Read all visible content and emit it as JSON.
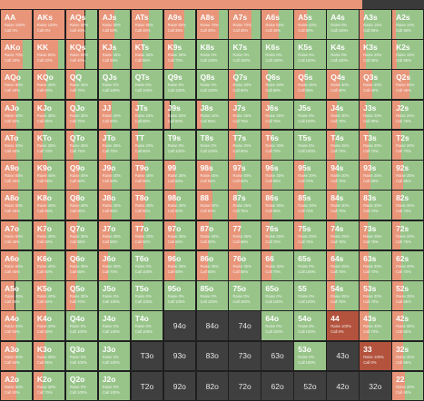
{
  "colors": {
    "raise": "#e8957a",
    "call": "#98c48a",
    "fold": "#3f3f3f",
    "dark_raise": "#b3533d",
    "grid_bg": "#1f1f1f"
  },
  "raise_word": "Raise",
  "call_word": "Call",
  "rows": [
    [
      {
        "hand": "AA",
        "mode": "raise",
        "raise_pct": 100,
        "call_pct": 0
      },
      {
        "hand": "AKs",
        "mode": "raise",
        "raise_pct": 100,
        "call_pct": 0
      },
      {
        "hand": "AQs",
        "mode": "mixed",
        "raise_pct": 60,
        "call_pct": 40
      },
      {
        "hand": "AJs",
        "mode": "mixed",
        "raise_pct": 50,
        "call_pct": 50
      },
      {
        "hand": "ATs",
        "mode": "mixed",
        "raise_pct": 55,
        "call_pct": 45
      },
      {
        "hand": "A9s",
        "mode": "mixed",
        "raise_pct": 65,
        "call_pct": 35
      },
      {
        "hand": "A8s",
        "mode": "mixed",
        "raise_pct": 70,
        "call_pct": 30
      },
      {
        "hand": "A7s",
        "mode": "mixed",
        "raise_pct": 70,
        "call_pct": 30
      },
      {
        "hand": "A6s",
        "mode": "mixed",
        "raise_pct": 55,
        "call_pct": 45
      },
      {
        "hand": "A5s",
        "mode": "mixed",
        "raise_pct": 40,
        "call_pct": 60
      },
      {
        "hand": "A4s",
        "mode": "call",
        "raise_pct": 0,
        "call_pct": 100
      },
      {
        "hand": "A3s",
        "mode": "mixed",
        "raise_pct": 15,
        "call_pct": 85
      },
      {
        "hand": "A2s",
        "mode": "mixed",
        "raise_pct": 10,
        "call_pct": 90
      }
    ],
    [
      {
        "hand": "AKo",
        "mode": "mixed",
        "raise_pct": 70,
        "call_pct": 30
      },
      {
        "hand": "KK",
        "mode": "mixed",
        "raise_pct": 80,
        "call_pct": 20
      },
      {
        "hand": "KQs",
        "mode": "mixed",
        "raise_pct": 60,
        "call_pct": 40
      },
      {
        "hand": "KJs",
        "mode": "mixed",
        "raise_pct": 45,
        "call_pct": 55
      },
      {
        "hand": "KTs",
        "mode": "mixed",
        "raise_pct": 35,
        "call_pct": 65
      },
      {
        "hand": "K9s",
        "mode": "mixed",
        "raise_pct": 30,
        "call_pct": 70
      },
      {
        "hand": "K8s",
        "mode": "call",
        "raise_pct": 0,
        "call_pct": 100
      },
      {
        "hand": "K7s",
        "mode": "call",
        "raise_pct": 0,
        "call_pct": 100
      },
      {
        "hand": "K6s",
        "mode": "call",
        "raise_pct": 0,
        "call_pct": 100
      },
      {
        "hand": "K5s",
        "mode": "call",
        "raise_pct": 0,
        "call_pct": 100
      },
      {
        "hand": "K4s",
        "mode": "call",
        "raise_pct": 0,
        "call_pct": 100
      },
      {
        "hand": "K3s",
        "mode": "mixed",
        "raise_pct": 20,
        "call_pct": 80
      },
      {
        "hand": "K2s",
        "mode": "mixed",
        "raise_pct": 15,
        "call_pct": 85
      }
    ],
    [
      {
        "hand": "AQo",
        "mode": "mixed",
        "raise_pct": 55,
        "call_pct": 45
      },
      {
        "hand": "KQo",
        "mode": "mixed",
        "raise_pct": 40,
        "call_pct": 60
      },
      {
        "hand": "QQ",
        "mode": "mixed",
        "raise_pct": 30,
        "call_pct": 70
      },
      {
        "hand": "QJs",
        "mode": "call",
        "raise_pct": 0,
        "call_pct": 100
      },
      {
        "hand": "QTs",
        "mode": "call",
        "raise_pct": 0,
        "call_pct": 100
      },
      {
        "hand": "Q9s",
        "mode": "call",
        "raise_pct": 0,
        "call_pct": 100
      },
      {
        "hand": "Q8s",
        "mode": "call",
        "raise_pct": 0,
        "call_pct": 100
      },
      {
        "hand": "Q7s",
        "mode": "mixed",
        "raise_pct": 20,
        "call_pct": 80
      },
      {
        "hand": "Q6s",
        "mode": "mixed",
        "raise_pct": 20,
        "call_pct": 80
      },
      {
        "hand": "Q5s",
        "mode": "mixed",
        "raise_pct": 35,
        "call_pct": 65
      },
      {
        "hand": "Q4s",
        "mode": "mixed",
        "raise_pct": 40,
        "call_pct": 60
      },
      {
        "hand": "Q3s",
        "mode": "mixed",
        "raise_pct": 40,
        "call_pct": 60
      },
      {
        "hand": "Q2s",
        "mode": "mixed",
        "raise_pct": 55,
        "call_pct": 45
      }
    ],
    [
      {
        "hand": "AJo",
        "mode": "mixed",
        "raise_pct": 50,
        "call_pct": 50
      },
      {
        "hand": "KJo",
        "mode": "mixed",
        "raise_pct": 35,
        "call_pct": 65
      },
      {
        "hand": "QJo",
        "mode": "mixed",
        "raise_pct": 30,
        "call_pct": 70
      },
      {
        "hand": "JJ",
        "mode": "mixed",
        "raise_pct": 40,
        "call_pct": 60
      },
      {
        "hand": "JTs",
        "mode": "mixed",
        "raise_pct": 20,
        "call_pct": 80
      },
      {
        "hand": "J9s",
        "mode": "mixed",
        "raise_pct": 20,
        "call_pct": 80
      },
      {
        "hand": "J8s",
        "mode": "mixed",
        "raise_pct": 15,
        "call_pct": 85
      },
      {
        "hand": "J7s",
        "mode": "mixed",
        "raise_pct": 25,
        "call_pct": 75
      },
      {
        "hand": "J6s",
        "mode": "mixed",
        "raise_pct": 25,
        "call_pct": 75
      },
      {
        "hand": "J5s",
        "mode": "call",
        "raise_pct": 0,
        "call_pct": 100
      },
      {
        "hand": "J4s",
        "mode": "mixed",
        "raise_pct": 30,
        "call_pct": 70
      },
      {
        "hand": "J3s",
        "mode": "mixed",
        "raise_pct": 20,
        "call_pct": 80
      },
      {
        "hand": "J2s",
        "mode": "mixed",
        "raise_pct": 25,
        "call_pct": 75
      }
    ],
    [
      {
        "hand": "ATo",
        "mode": "mixed",
        "raise_pct": 50,
        "call_pct": 50
      },
      {
        "hand": "KTo",
        "mode": "mixed",
        "raise_pct": 30,
        "call_pct": 70
      },
      {
        "hand": "QTo",
        "mode": "mixed",
        "raise_pct": 25,
        "call_pct": 75
      },
      {
        "hand": "JTo",
        "mode": "mixed",
        "raise_pct": 25,
        "call_pct": 75
      },
      {
        "hand": "TT",
        "mode": "mixed",
        "raise_pct": 20,
        "call_pct": 80
      },
      {
        "hand": "T9s",
        "mode": "call",
        "raise_pct": 0,
        "call_pct": 100
      },
      {
        "hand": "T8s",
        "mode": "call",
        "raise_pct": 0,
        "call_pct": 100
      },
      {
        "hand": "T7s",
        "mode": "mixed",
        "raise_pct": 20,
        "call_pct": 80
      },
      {
        "hand": "T6s",
        "mode": "mixed",
        "raise_pct": 30,
        "call_pct": 70
      },
      {
        "hand": "T5s",
        "mode": "call",
        "raise_pct": 0,
        "call_pct": 100
      },
      {
        "hand": "T4s",
        "mode": "mixed",
        "raise_pct": 25,
        "call_pct": 75
      },
      {
        "hand": "T3s",
        "mode": "mixed",
        "raise_pct": 30,
        "call_pct": 70
      },
      {
        "hand": "T2s",
        "mode": "mixed",
        "raise_pct": 30,
        "call_pct": 70
      }
    ],
    [
      {
        "hand": "A9o",
        "mode": "mixed",
        "raise_pct": 55,
        "call_pct": 45
      },
      {
        "hand": "K9o",
        "mode": "mixed",
        "raise_pct": 45,
        "call_pct": 55
      },
      {
        "hand": "Q9o",
        "mode": "mixed",
        "raise_pct": 40,
        "call_pct": 60
      },
      {
        "hand": "J9o",
        "mode": "mixed",
        "raise_pct": 40,
        "call_pct": 60
      },
      {
        "hand": "T9o",
        "mode": "mixed",
        "raise_pct": 45,
        "call_pct": 55
      },
      {
        "hand": "99",
        "mode": "mixed",
        "raise_pct": 35,
        "call_pct": 65
      },
      {
        "hand": "98s",
        "mode": "mixed",
        "raise_pct": 45,
        "call_pct": 55
      },
      {
        "hand": "97s",
        "mode": "mixed",
        "raise_pct": 40,
        "call_pct": 60
      },
      {
        "hand": "96s",
        "mode": "mixed",
        "raise_pct": 35,
        "call_pct": 65
      },
      {
        "hand": "95s",
        "mode": "mixed",
        "raise_pct": 30,
        "call_pct": 70
      },
      {
        "hand": "94s",
        "mode": "mixed",
        "raise_pct": 30,
        "call_pct": 70
      },
      {
        "hand": "93s",
        "mode": "mixed",
        "raise_pct": 35,
        "call_pct": 65
      },
      {
        "hand": "92s",
        "mode": "mixed",
        "raise_pct": 35,
        "call_pct": 65
      }
    ],
    [
      {
        "hand": "A8o",
        "mode": "mixed",
        "raise_pct": 55,
        "call_pct": 45
      },
      {
        "hand": "K8o",
        "mode": "mixed",
        "raise_pct": 45,
        "call_pct": 55
      },
      {
        "hand": "Q8o",
        "mode": "mixed",
        "raise_pct": 40,
        "call_pct": 60
      },
      {
        "hand": "J8o",
        "mode": "mixed",
        "raise_pct": 40,
        "call_pct": 60
      },
      {
        "hand": "T8o",
        "mode": "mixed",
        "raise_pct": 45,
        "call_pct": 55
      },
      {
        "hand": "98o",
        "mode": "mixed",
        "raise_pct": 40,
        "call_pct": 60
      },
      {
        "hand": "88",
        "mode": "mixed",
        "raise_pct": 50,
        "call_pct": 50
      },
      {
        "hand": "87s",
        "mode": "mixed",
        "raise_pct": 25,
        "call_pct": 75
      },
      {
        "hand": "86s",
        "mode": "mixed",
        "raise_pct": 35,
        "call_pct": 65
      },
      {
        "hand": "85s",
        "mode": "mixed",
        "raise_pct": 30,
        "call_pct": 70
      },
      {
        "hand": "84s",
        "mode": "mixed",
        "raise_pct": 30,
        "call_pct": 70
      },
      {
        "hand": "83s",
        "mode": "mixed",
        "raise_pct": 30,
        "call_pct": 70
      },
      {
        "hand": "82s",
        "mode": "mixed",
        "raise_pct": 30,
        "call_pct": 70
      }
    ],
    [
      {
        "hand": "A7o",
        "mode": "mixed",
        "raise_pct": 55,
        "call_pct": 45
      },
      {
        "hand": "K7o",
        "mode": "mixed",
        "raise_pct": 40,
        "call_pct": 60
      },
      {
        "hand": "Q7o",
        "mode": "mixed",
        "raise_pct": 35,
        "call_pct": 65
      },
      {
        "hand": "J7o",
        "mode": "mixed",
        "raise_pct": 35,
        "call_pct": 65
      },
      {
        "hand": "T7o",
        "mode": "mixed",
        "raise_pct": 40,
        "call_pct": 60
      },
      {
        "hand": "97o",
        "mode": "mixed",
        "raise_pct": 35,
        "call_pct": 65
      },
      {
        "hand": "87o",
        "mode": "mixed",
        "raise_pct": 40,
        "call_pct": 60
      },
      {
        "hand": "77",
        "mode": "mixed",
        "raise_pct": 35,
        "call_pct": 65
      },
      {
        "hand": "76s",
        "mode": "mixed",
        "raise_pct": 25,
        "call_pct": 75
      },
      {
        "hand": "75s",
        "mode": "mixed",
        "raise_pct": 25,
        "call_pct": 75
      },
      {
        "hand": "74s",
        "mode": "mixed",
        "raise_pct": 25,
        "call_pct": 75
      },
      {
        "hand": "73s",
        "mode": "mixed",
        "raise_pct": 25,
        "call_pct": 75
      },
      {
        "hand": "72s",
        "mode": "mixed",
        "raise_pct": 25,
        "call_pct": 75
      }
    ],
    [
      {
        "hand": "A6o",
        "mode": "mixed",
        "raise_pct": 55,
        "call_pct": 45
      },
      {
        "hand": "K6o",
        "mode": "mixed",
        "raise_pct": 40,
        "call_pct": 60
      },
      {
        "hand": "Q6o",
        "mode": "mixed",
        "raise_pct": 35,
        "call_pct": 65
      },
      {
        "hand": "J6o",
        "mode": "mixed",
        "raise_pct": 30,
        "call_pct": 70
      },
      {
        "hand": "T6o",
        "mode": "call",
        "raise_pct": 0,
        "call_pct": 100
      },
      {
        "hand": "96o",
        "mode": "mixed",
        "raise_pct": 35,
        "call_pct": 65
      },
      {
        "hand": "86o",
        "mode": "mixed",
        "raise_pct": 35,
        "call_pct": 65
      },
      {
        "hand": "76o",
        "mode": "mixed",
        "raise_pct": 35,
        "call_pct": 65
      },
      {
        "hand": "66",
        "mode": "mixed",
        "raise_pct": 30,
        "call_pct": 70
      },
      {
        "hand": "65s",
        "mode": "call",
        "raise_pct": 0,
        "call_pct": 100
      },
      {
        "hand": "64s",
        "mode": "mixed",
        "raise_pct": 25,
        "call_pct": 75
      },
      {
        "hand": "63s",
        "mode": "mixed",
        "raise_pct": 30,
        "call_pct": 70
      },
      {
        "hand": "62s",
        "mode": "mixed",
        "raise_pct": 30,
        "call_pct": 70
      }
    ],
    [
      {
        "hand": "A5o",
        "mode": "mixed",
        "raise_pct": 45,
        "call_pct": 55
      },
      {
        "hand": "K5o",
        "mode": "mixed",
        "raise_pct": 40,
        "call_pct": 60
      },
      {
        "hand": "Q5o",
        "mode": "mixed",
        "raise_pct": 30,
        "call_pct": 70
      },
      {
        "hand": "J5o",
        "mode": "call",
        "raise_pct": 0,
        "call_pct": 100
      },
      {
        "hand": "T5o",
        "mode": "call",
        "raise_pct": 0,
        "call_pct": 100
      },
      {
        "hand": "95o",
        "mode": "call",
        "raise_pct": 0,
        "call_pct": 100
      },
      {
        "hand": "85o",
        "mode": "call",
        "raise_pct": 0,
        "call_pct": 100
      },
      {
        "hand": "75o",
        "mode": "call",
        "raise_pct": 0,
        "call_pct": 100
      },
      {
        "hand": "65o",
        "mode": "call",
        "raise_pct": 0,
        "call_pct": 100
      },
      {
        "hand": "55",
        "mode": "call",
        "raise_pct": 0,
        "call_pct": 100
      },
      {
        "hand": "54s",
        "mode": "mixed",
        "raise_pct": 25,
        "call_pct": 75
      },
      {
        "hand": "53s",
        "mode": "mixed",
        "raise_pct": 30,
        "call_pct": 70
      },
      {
        "hand": "52s",
        "mode": "mixed",
        "raise_pct": 35,
        "call_pct": 65
      }
    ],
    [
      {
        "hand": "A4o",
        "mode": "mixed",
        "raise_pct": 50,
        "call_pct": 50
      },
      {
        "hand": "K4o",
        "mode": "mixed",
        "raise_pct": 40,
        "call_pct": 60
      },
      {
        "hand": "Q4o",
        "mode": "call",
        "raise_pct": 0,
        "call_pct": 100
      },
      {
        "hand": "J4o",
        "mode": "call",
        "raise_pct": 0,
        "call_pct": 100
      },
      {
        "hand": "T4o",
        "mode": "call",
        "raise_pct": 0,
        "call_pct": 100
      },
      {
        "hand": "94o",
        "mode": "fold",
        "raise_pct": 0,
        "call_pct": 0
      },
      {
        "hand": "84o",
        "mode": "fold",
        "raise_pct": 0,
        "call_pct": 0
      },
      {
        "hand": "74o",
        "mode": "fold",
        "raise_pct": 0,
        "call_pct": 0
      },
      {
        "hand": "64o",
        "mode": "call",
        "raise_pct": 0,
        "call_pct": 100
      },
      {
        "hand": "54o",
        "mode": "call",
        "raise_pct": 0,
        "call_pct": 100
      },
      {
        "hand": "44",
        "mode": "raise",
        "raise_pct": 100,
        "call_pct": 0
      },
      {
        "hand": "43s",
        "mode": "mixed",
        "raise_pct": 30,
        "call_pct": 70
      },
      {
        "hand": "42s",
        "mode": "mixed",
        "raise_pct": 35,
        "call_pct": 65
      }
    ],
    [
      {
        "hand": "A3o",
        "mode": "mixed",
        "raise_pct": 50,
        "call_pct": 50
      },
      {
        "hand": "K3o",
        "mode": "mixed",
        "raise_pct": 35,
        "call_pct": 65
      },
      {
        "hand": "Q3o",
        "mode": "call",
        "raise_pct": 0,
        "call_pct": 100
      },
      {
        "hand": "J3o",
        "mode": "call",
        "raise_pct": 0,
        "call_pct": 100
      },
      {
        "hand": "T3o",
        "mode": "fold",
        "raise_pct": 0,
        "call_pct": 0
      },
      {
        "hand": "93o",
        "mode": "fold",
        "raise_pct": 0,
        "call_pct": 0
      },
      {
        "hand": "83o",
        "mode": "fold",
        "raise_pct": 0,
        "call_pct": 0
      },
      {
        "hand": "73o",
        "mode": "fold",
        "raise_pct": 0,
        "call_pct": 0
      },
      {
        "hand": "63o",
        "mode": "fold",
        "raise_pct": 0,
        "call_pct": 0
      },
      {
        "hand": "53o",
        "mode": "call",
        "raise_pct": 0,
        "call_pct": 100
      },
      {
        "hand": "43o",
        "mode": "fold",
        "raise_pct": 0,
        "call_pct": 0
      },
      {
        "hand": "33",
        "mode": "raise",
        "raise_pct": 100,
        "call_pct": 0
      },
      {
        "hand": "32s",
        "mode": "mixed",
        "raise_pct": 35,
        "call_pct": 65
      }
    ],
    [
      {
        "hand": "A2o",
        "mode": "mixed",
        "raise_pct": 50,
        "call_pct": 50
      },
      {
        "hand": "K2o",
        "mode": "mixed",
        "raise_pct": 30,
        "call_pct": 70
      },
      {
        "hand": "Q2o",
        "mode": "call",
        "raise_pct": 0,
        "call_pct": 100
      },
      {
        "hand": "J2o",
        "mode": "call",
        "raise_pct": 0,
        "call_pct": 100
      },
      {
        "hand": "T2o",
        "mode": "fold",
        "raise_pct": 0,
        "call_pct": 0
      },
      {
        "hand": "92o",
        "mode": "fold",
        "raise_pct": 0,
        "call_pct": 0
      },
      {
        "hand": "82o",
        "mode": "fold",
        "raise_pct": 0,
        "call_pct": 0
      },
      {
        "hand": "72o",
        "mode": "fold",
        "raise_pct": 0,
        "call_pct": 0
      },
      {
        "hand": "62o",
        "mode": "fold",
        "raise_pct": 0,
        "call_pct": 0
      },
      {
        "hand": "52o",
        "mode": "fold",
        "raise_pct": 0,
        "call_pct": 0
      },
      {
        "hand": "42o",
        "mode": "fold",
        "raise_pct": 0,
        "call_pct": 0
      },
      {
        "hand": "32o",
        "mode": "fold",
        "raise_pct": 0,
        "call_pct": 0
      },
      {
        "hand": "22",
        "mode": "mixed",
        "raise_pct": 40,
        "call_pct": 60
      }
    ]
  ]
}
